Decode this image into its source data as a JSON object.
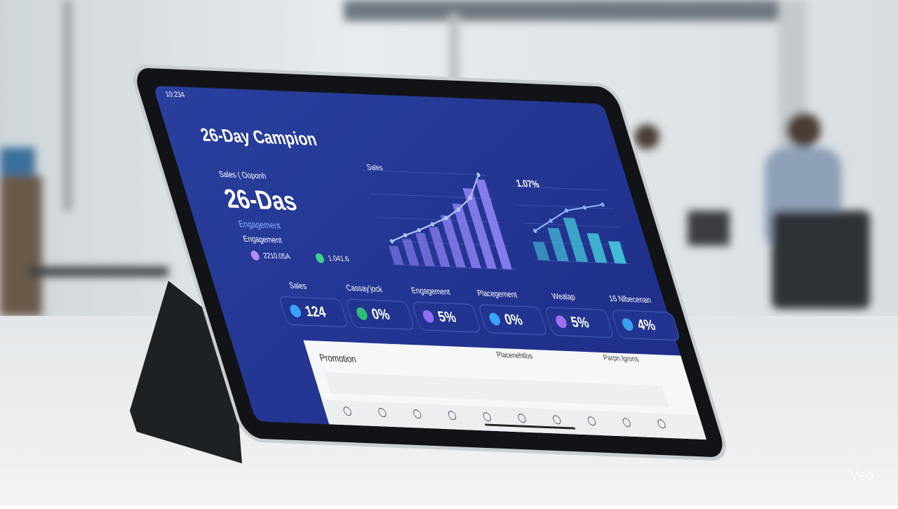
{
  "status": {
    "time": "10:234"
  },
  "title": "26-Day Campion",
  "summary": {
    "label": "Sales ( Ooponh",
    "value": "26-Das",
    "sub1": "Engagement",
    "sub2": "Engagement",
    "stats": [
      "2210.05A",
      "1.041.6"
    ]
  },
  "charts": [
    {
      "label": "Sales",
      "ylim": [
        0,
        100
      ],
      "bars": [
        20,
        28,
        35,
        42,
        55,
        68,
        85,
        95
      ],
      "line": [
        25,
        32,
        38,
        45,
        52,
        62,
        75,
        100
      ],
      "bar_color": "#8c7ff0",
      "line_color": "#b8c8ff"
    },
    {
      "label": "1.07%",
      "ylim": [
        0,
        100
      ],
      "bars": [
        25,
        45,
        60,
        40,
        30
      ],
      "line": [
        40,
        55,
        70,
        75,
        80
      ],
      "bar_color": "#44c8d8",
      "line_color": "#8fb4ff"
    }
  ],
  "metrics": [
    {
      "label": "Sales",
      "value": "124"
    },
    {
      "label": "Cassay'jock",
      "value": "0%"
    },
    {
      "label": "Engagement",
      "value": "5%"
    },
    {
      "label": "Placegement",
      "value": "0%"
    },
    {
      "label": "Wealap",
      "value": "5%"
    },
    {
      "label": "16 Nlbecenan",
      "value": "4%"
    }
  ],
  "panel": {
    "title": "Promotion",
    "columns": [
      "Placenehtlos",
      "Parpn lgrons"
    ]
  },
  "watermark": "Veo"
}
